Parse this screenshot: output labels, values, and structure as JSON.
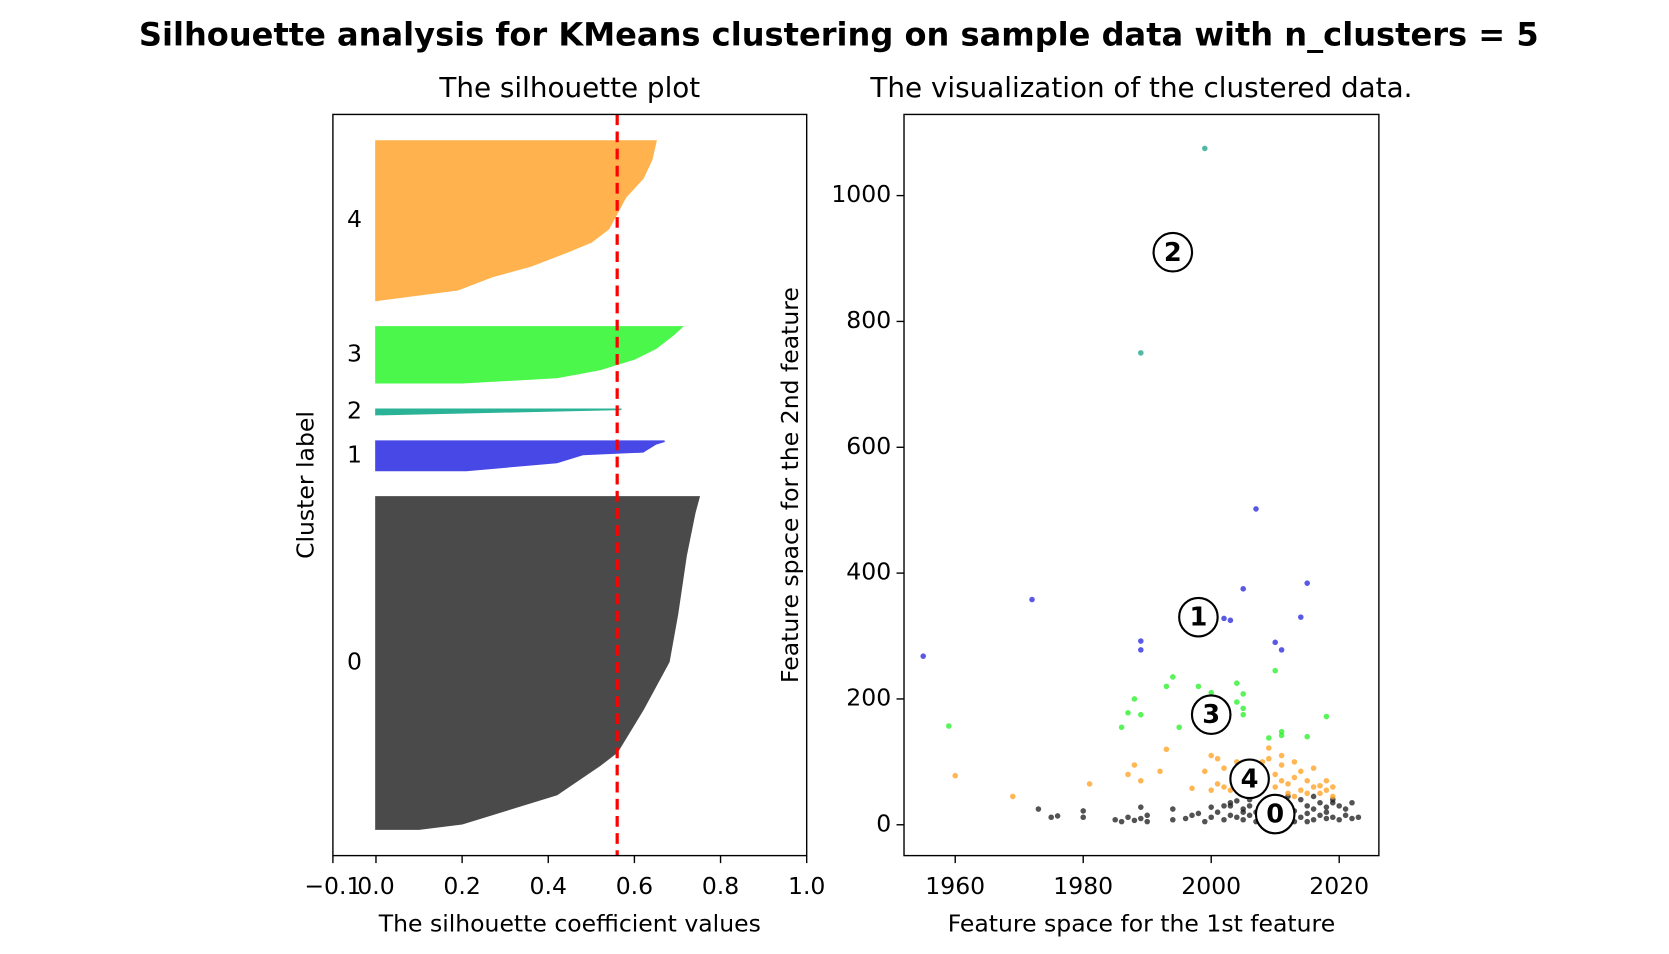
{
  "title": "Silhouette analysis for KMeans clustering on sample data with n_clusters = 5",
  "chart_data": [
    {
      "type": "silhouette",
      "title": "The silhouette plot",
      "xlabel": "The silhouette coefficient values",
      "ylabel": "Cluster label",
      "xlim": [
        -0.1,
        1.0
      ],
      "ylim": [
        0,
        279
      ],
      "xticks": [
        {
          "value": -0.1,
          "label": "−0.1"
        },
        {
          "value": 0,
          "label": "0.0"
        },
        0.2,
        0.4,
        0.6,
        0.8,
        {
          "value": 1.0,
          "label": "1.0"
        }
      ],
      "mean": 0.56,
      "mean_color": "#ff0000",
      "series": [
        {
          "name": "0",
          "color": "#4a4a4a",
          "x": [
            0.1,
            0.2,
            0.42,
            0.52,
            0.56,
            0.62,
            0.68,
            0.7,
            0.72,
            0.74,
            0.75
          ],
          "y": [
            10,
            12,
            23,
            34,
            39,
            55,
            73,
            91,
            113,
            129,
            135
          ]
        },
        {
          "name": "1",
          "color": "#4848e6",
          "x": [
            0.21,
            0.42,
            0.48,
            0.62,
            0.65,
            0.67
          ],
          "y": [
            145,
            148,
            151,
            152,
            155,
            156
          ]
        },
        {
          "name": "2",
          "color": "#2ab396",
          "x": [
            0.0,
            0.57
          ],
          "y": [
            166,
            168
          ]
        },
        {
          "name": "3",
          "color": "#4af74a",
          "x": [
            0.2,
            0.42,
            0.52,
            0.6,
            0.65,
            0.69,
            0.71
          ],
          "y": [
            178,
            180,
            183,
            187,
            191,
            196,
            199
          ]
        },
        {
          "name": "4",
          "color": "#ffb24d",
          "x": [
            0.0,
            0.19,
            0.27,
            0.36,
            0.44,
            0.5,
            0.54,
            0.56,
            0.58,
            0.62,
            0.64,
            0.65
          ],
          "y": [
            209,
            213,
            218,
            222,
            227,
            231,
            236,
            242,
            248,
            255,
            262,
            269
          ]
        }
      ]
    },
    {
      "type": "scatter",
      "title": "The visualization of the clustered data.",
      "xlabel": "Feature space for the 1st feature",
      "ylabel": "Feature space for the 2nd feature",
      "xlim": [
        1952,
        2026.2
      ],
      "ylim": [
        -49,
        1129
      ],
      "xticks": [
        1960,
        1980,
        2000,
        2020
      ],
      "yticks": [
        0,
        200,
        400,
        600,
        800,
        1000
      ],
      "series": [
        {
          "name": "0",
          "color": "#1a1a1a",
          "x": [
            1973,
            1975,
            1976,
            1980,
            1980,
            1985,
            1986,
            1987,
            1988,
            1989,
            1989,
            1990,
            1990,
            1994,
            1994,
            1996,
            1997,
            1998,
            1999,
            2000,
            2000,
            2001,
            2002,
            2002,
            2003,
            2003,
            2004,
            2004,
            2005,
            2005,
            2006,
            2006,
            2006,
            2007,
            2007,
            2008,
            2008,
            2009,
            2009,
            2010,
            2010,
            2010,
            2011,
            2011,
            2012,
            2012,
            2013,
            2013,
            2014,
            2014,
            2015,
            2015,
            2016,
            2016,
            2016,
            2017,
            2017,
            2018,
            2018,
            2018,
            2019,
            2019,
            2020,
            2020,
            2021,
            2021,
            2022,
            2022,
            2023,
            2003,
            2005,
            2012,
            2015,
            2019
          ],
          "y": [
            25,
            12,
            14,
            22,
            12,
            8,
            5,
            12,
            7,
            10,
            28,
            5,
            15,
            25,
            8,
            10,
            15,
            18,
            5,
            28,
            12,
            20,
            8,
            30,
            35,
            15,
            12,
            38,
            25,
            8,
            40,
            15,
            30,
            20,
            5,
            35,
            12,
            25,
            8,
            40,
            18,
            30,
            28,
            10,
            35,
            15,
            22,
            5,
            40,
            12,
            30,
            18,
            45,
            25,
            8,
            35,
            15,
            28,
            10,
            20,
            40,
            12,
            30,
            8,
            25,
            15,
            35,
            10,
            12,
            30,
            20,
            45,
            5,
            35
          ]
        },
        {
          "name": "1",
          "color": "#2222dd",
          "x": [
            1955,
            1972,
            1989,
            1989,
            2002,
            2003,
            2005,
            2007,
            2010,
            2011,
            2014,
            2015
          ],
          "y": [
            268,
            358,
            292,
            278,
            328,
            325,
            375,
            502,
            290,
            278,
            330,
            384
          ]
        },
        {
          "name": "2",
          "color": "#16a085",
          "x": [
            1989,
            1999
          ],
          "y": [
            750,
            1075
          ]
        },
        {
          "name": "3",
          "color": "#22f022",
          "x": [
            1959,
            1986,
            1987,
            1988,
            1989,
            1993,
            1994,
            1995,
            1998,
            2000,
            2004,
            2004,
            2005,
            2005,
            2005,
            2009,
            2010,
            2011,
            2011,
            2015,
            2018
          ],
          "y": [
            157,
            155,
            178,
            200,
            175,
            220,
            235,
            155,
            220,
            210,
            225,
            195,
            208,
            185,
            175,
            138,
            245,
            148,
            142,
            140,
            172
          ]
        },
        {
          "name": "4",
          "color": "#ff9d1a",
          "x": [
            1960,
            1969,
            1981,
            1987,
            1988,
            1989,
            1992,
            1993,
            1997,
            1999,
            2000,
            2001,
            2001,
            2002,
            2003,
            2004,
            2005,
            2006,
            2007,
            2008,
            2009,
            2009,
            2010,
            2010,
            2011,
            2011,
            2012,
            2013,
            2013,
            2014,
            2014,
            2015,
            2016,
            2016,
            2017,
            2018,
            2018,
            2019,
            2019,
            2012,
            2008,
            2006,
            2015,
            2017,
            2002,
            2004,
            2000,
            2011,
            2013
          ],
          "y": [
            78,
            45,
            65,
            80,
            95,
            70,
            85,
            120,
            58,
            85,
            110,
            105,
            65,
            90,
            55,
            85,
            65,
            75,
            90,
            60,
            122,
            105,
            80,
            60,
            70,
            95,
            65,
            100,
            75,
            85,
            55,
            70,
            90,
            60,
            50,
            70,
            55,
            45,
            60,
            50,
            100,
            60,
            50,
            62,
            60,
            100,
            55,
            110,
            45
          ]
        }
      ],
      "centers": {
        "x": [
          2010,
          1998,
          1994,
          2000,
          2006
        ],
        "y": [
          17,
          330,
          910,
          175,
          73
        ]
      }
    }
  ]
}
